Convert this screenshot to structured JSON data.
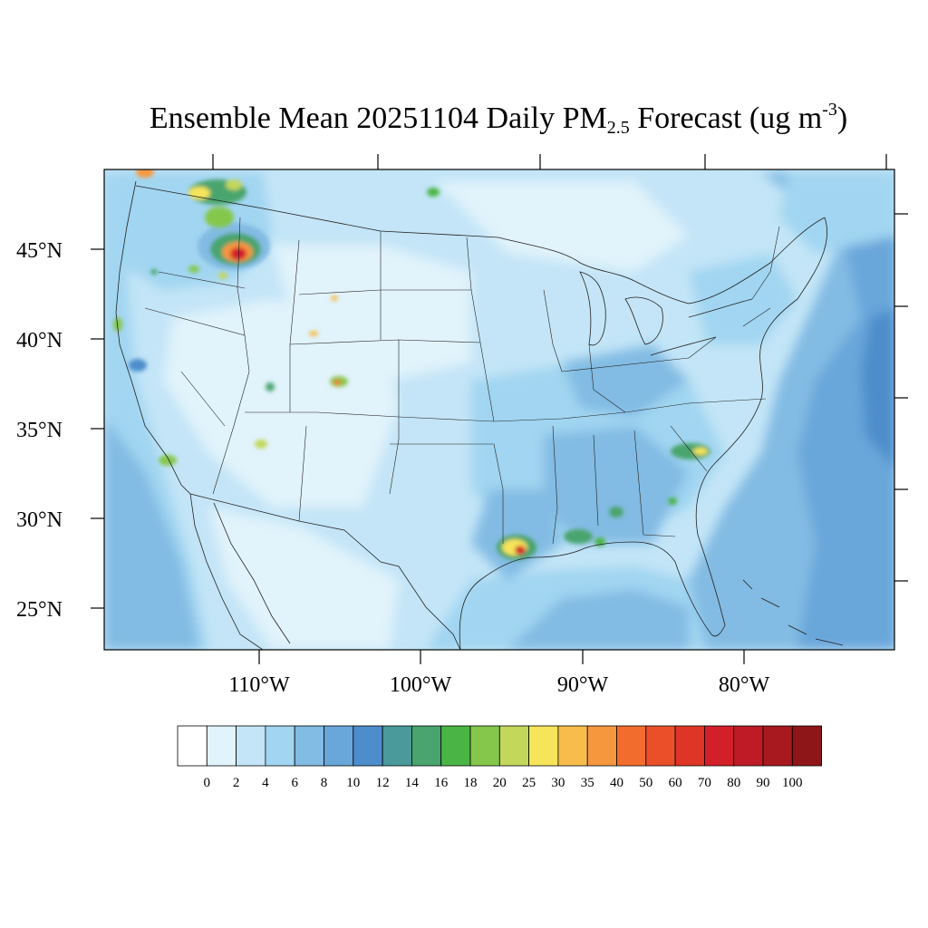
{
  "title": {
    "prefix": "Ensemble Mean 20251104 Daily PM",
    "subscript": "2.5",
    "middle": " Forecast (ug m",
    "superscript": "-3",
    "suffix": ")"
  },
  "map": {
    "lat_labels": [
      "45°N",
      "40°N",
      "35°N",
      "30°N",
      "25°N"
    ],
    "lon_labels": [
      "110°W",
      "100°W",
      "90°W",
      "80°W"
    ],
    "hotspots": [
      {
        "name": "idaho-montana-fire",
        "level": 80
      },
      {
        "name": "northern-washington",
        "level": 25
      },
      {
        "name": "louisiana-coast",
        "level": 70
      },
      {
        "name": "south-carolina",
        "level": 25
      },
      {
        "name": "mississippi-gulf-coast",
        "level": 18
      },
      {
        "name": "colorado-front-range",
        "level": 30
      },
      {
        "name": "northern-california",
        "level": 20
      },
      {
        "name": "los-angeles",
        "level": 20
      },
      {
        "name": "central-arizona",
        "level": 25
      }
    ]
  },
  "colorbar": {
    "colors": [
      "#ffffff",
      "#e1f3fb",
      "#c3e5f7",
      "#a1d5f1",
      "#82bbe3",
      "#69a6da",
      "#4e8dcb",
      "#4a999b",
      "#4aa46d",
      "#4ab545",
      "#85c74b",
      "#c3d75b",
      "#f6e55a",
      "#f7bc4a",
      "#f6963d",
      "#f26d2d",
      "#e95029",
      "#df3526",
      "#d31f2a",
      "#be1b27",
      "#a8191f",
      "#8e1518"
    ],
    "ticks": [
      "0",
      "2",
      "4",
      "6",
      "8",
      "10",
      "12",
      "14",
      "16",
      "18",
      "20",
      "25",
      "30",
      "35",
      "40",
      "50",
      "60",
      "70",
      "80",
      "90",
      "100"
    ]
  }
}
